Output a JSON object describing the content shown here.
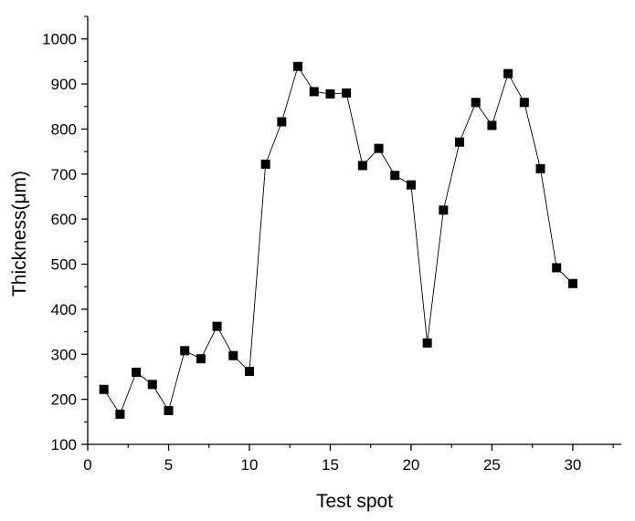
{
  "chart_data": {
    "type": "line",
    "xlabel": "Test spot",
    "ylabel": "Thickness(μm)",
    "xlim": [
      0,
      33
    ],
    "ylim": [
      100,
      1050
    ],
    "xticks": [
      0,
      5,
      10,
      15,
      20,
      25,
      30
    ],
    "yticks": [
      100,
      200,
      300,
      400,
      500,
      600,
      700,
      800,
      900,
      1000
    ],
    "grid": false,
    "marker": "square",
    "line_color": "#000000",
    "marker_color": "#000000",
    "series": [
      {
        "x": [
          1,
          2,
          3,
          4,
          5,
          6,
          7,
          8,
          9,
          10,
          11,
          12,
          13,
          14,
          15,
          16,
          17,
          18,
          19,
          20,
          21,
          22,
          23,
          24,
          25,
          26,
          27,
          28,
          29,
          30
        ],
        "y": [
          222,
          167,
          260,
          233,
          175,
          308,
          290,
          362,
          297,
          262,
          722,
          816,
          939,
          883,
          878,
          880,
          719,
          757,
          697,
          676,
          325,
          620,
          771,
          859,
          808,
          923,
          859,
          712,
          492,
          457
        ]
      }
    ]
  }
}
